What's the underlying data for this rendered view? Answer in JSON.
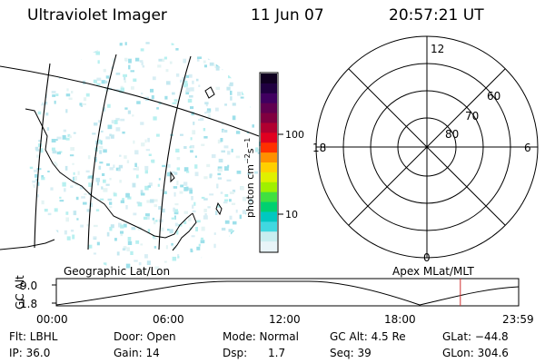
{
  "header": {
    "instrument": "Ultraviolet Imager",
    "date": "11 Jun 07",
    "time": "20:57:21 UT"
  },
  "geo_panel": {
    "label": "Geographic Lat/Lon"
  },
  "polar_panel": {
    "label": "Apex MLat/MLT",
    "mlt_labels": [
      "12",
      "18",
      "6",
      "0"
    ],
    "lat_labels": [
      "60",
      "70",
      "80"
    ]
  },
  "colorbar": {
    "unit_label": "photon cm",
    "unit_exp1": "−2",
    "unit_mid": "s",
    "unit_exp2": "−1",
    "ticks": [
      "100",
      "10"
    ],
    "colors": [
      "#e8f4f8",
      "#c8eef0",
      "#40d8e0",
      "#00c8c0",
      "#00d070",
      "#40e040",
      "#a0f000",
      "#e0f000",
      "#ffd000",
      "#ff9000",
      "#ff3000",
      "#e00020",
      "#b00030",
      "#800040",
      "#600050",
      "#400060",
      "#200040",
      "#100020"
    ]
  },
  "orbit": {
    "axis_label": "GC Alt",
    "ymax_label": "9.0",
    "ymin_label": "1.8",
    "time_labels": [
      "00:00",
      "06:00",
      "12:00",
      "18:00",
      "23:59"
    ],
    "current_hours": 20.96
  },
  "info": {
    "flt": "Flt: LBHL",
    "door": "Door: Open",
    "mode": "Mode: Normal",
    "gcalt": "GC Alt: 4.5 Re",
    "glat": "GLat: −44.8",
    "ip": "IP: 36.0",
    "gain": "Gain: 14",
    "dsp": "Dsp:      1.7",
    "seq": "Seq: 39",
    "glon": "GLon: 304.6"
  }
}
